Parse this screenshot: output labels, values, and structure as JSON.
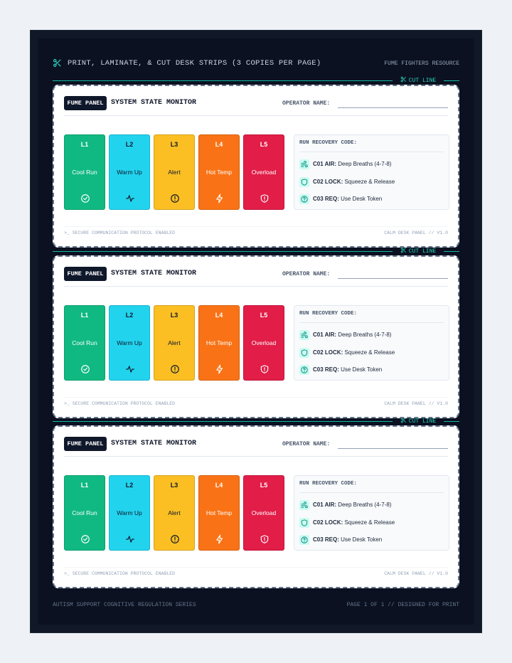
{
  "header": {
    "title": "PRINT, LAMINATE, & CUT DESK STRIPS (3 COPIES PER PAGE)",
    "resource": "FUME FIGHTERS RESOURCE"
  },
  "cut_lines": [
    "CUT LINE",
    "CUT LINE",
    "CUT LINE"
  ],
  "strips": [
    {
      "badge": "FUME PANEL",
      "title": "SYSTEM STATE MONITOR",
      "operator_label": "OPERATOR NAME:",
      "levels": [
        {
          "level": "L1",
          "name": "Cool Run"
        },
        {
          "level": "L2",
          "name": "Warm Up"
        },
        {
          "level": "L3",
          "name": "Alert"
        },
        {
          "level": "L4",
          "name": "Hot Temp"
        },
        {
          "level": "L5",
          "name": "Overload"
        }
      ],
      "recovery": {
        "title": "RUN RECOVERY CODE:",
        "items": [
          {
            "code": "C01 AIR:",
            "text": "Deep Breaths (4-7-8)"
          },
          {
            "code": "C02 LOCK:",
            "text": "Squeeze & Release"
          },
          {
            "code": "C03 REQ:",
            "text": "Use Desk Token"
          }
        ]
      },
      "footer": {
        "left": ">_ SECURE COMMUNICATION PROTOCOL ENABLED",
        "right": "CALM DESK PANEL // V1.0"
      }
    },
    {
      "badge": "FUME PANEL",
      "title": "SYSTEM STATE MONITOR",
      "operator_label": "OPERATOR NAME:",
      "levels": [
        {
          "level": "L1",
          "name": "Cool Run"
        },
        {
          "level": "L2",
          "name": "Warm Up"
        },
        {
          "level": "L3",
          "name": "Alert"
        },
        {
          "level": "L4",
          "name": "Hot Temp"
        },
        {
          "level": "L5",
          "name": "Overload"
        }
      ],
      "recovery": {
        "title": "RUN RECOVERY CODE:",
        "items": [
          {
            "code": "C01 AIR:",
            "text": "Deep Breaths (4-7-8)"
          },
          {
            "code": "C02 LOCK:",
            "text": "Squeeze & Release"
          },
          {
            "code": "C03 REQ:",
            "text": "Use Desk Token"
          }
        ]
      },
      "footer": {
        "left": ">_ SECURE COMMUNICATION PROTOCOL ENABLED",
        "right": "CALM DESK PANEL // V1.0"
      }
    },
    {
      "badge": "FUME PANEL",
      "title": "SYSTEM STATE MONITOR",
      "operator_label": "OPERATOR NAME:",
      "levels": [
        {
          "level": "L1",
          "name": "Cool Run"
        },
        {
          "level": "L2",
          "name": "Warm Up"
        },
        {
          "level": "L3",
          "name": "Alert"
        },
        {
          "level": "L4",
          "name": "Hot Temp"
        },
        {
          "level": "L5",
          "name": "Overload"
        }
      ],
      "recovery": {
        "title": "RUN RECOVERY CODE:",
        "items": [
          {
            "code": "C01 AIR:",
            "text": "Deep Breaths (4-7-8)"
          },
          {
            "code": "C02 LOCK:",
            "text": "Squeeze & Release"
          },
          {
            "code": "C03 REQ:",
            "text": "Use Desk Token"
          }
        ]
      },
      "footer": {
        "left": ">_ SECURE COMMUNICATION PROTOCOL ENABLED",
        "right": "CALM DESK PANEL // V1.0"
      }
    }
  ],
  "footer": {
    "left": "AUTISM SUPPORT COGNITIVE REGULATION SERIES",
    "right": "PAGE 1 OF 1 // DESIGNED FOR PRINT"
  }
}
